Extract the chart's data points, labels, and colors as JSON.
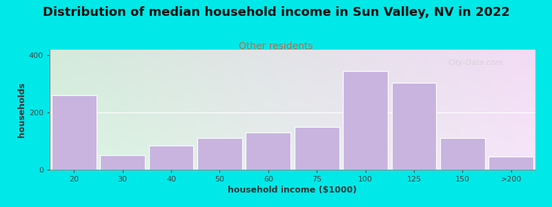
{
  "title": "Distribution of median household income in Sun Valley, NV in 2022",
  "subtitle": "Other residents",
  "xlabel": "household income ($1000)",
  "ylabel": "households",
  "bar_labels": [
    "20",
    "30",
    "40",
    "50",
    "60",
    "75",
    "100",
    "125",
    "150",
    ">200"
  ],
  "bar_values": [
    260,
    50,
    85,
    110,
    130,
    150,
    345,
    305,
    110,
    45
  ],
  "bar_color": "#c9b4e0",
  "bar_edgecolor": "#ffffff",
  "bg_color_topleft": "#d6efd6",
  "bg_color_topright": "#f0f0ff",
  "bg_color_bottomright": "#e8e8ff",
  "outer_background": "#00e8e8",
  "ylim": [
    0,
    420
  ],
  "yticks": [
    0,
    200,
    400
  ],
  "title_fontsize": 13,
  "subtitle_fontsize": 10,
  "subtitle_color": "#cc6644",
  "axis_label_fontsize": 9,
  "tick_label_fontsize": 8,
  "watermark_text": "City-Data.com"
}
